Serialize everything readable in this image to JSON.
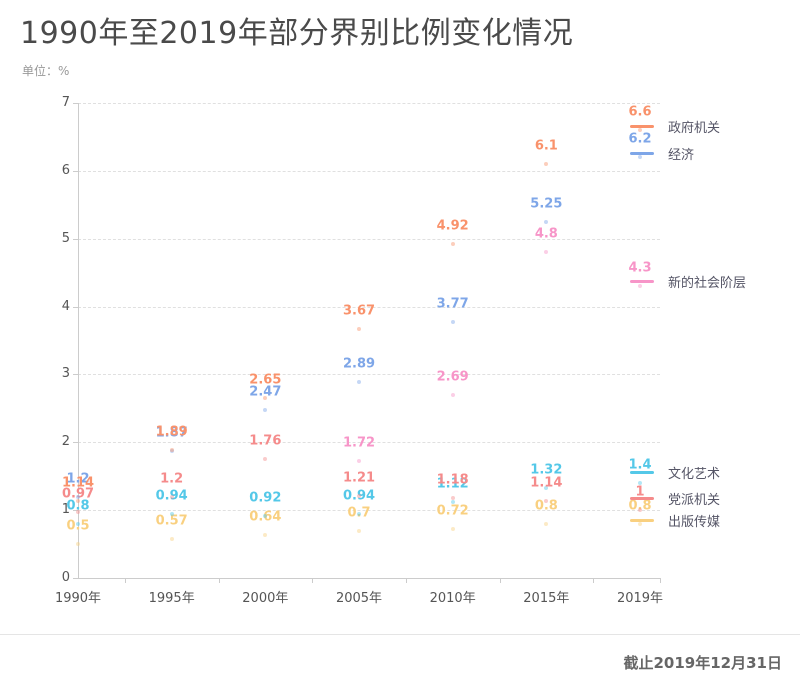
{
  "title": "1990年至2019年部分界别比例变化情况",
  "subtitle": "单位：%",
  "footer_note": "截止2019年12月31日",
  "chart_data": {
    "type": "scatter",
    "title": "1990年至2019年部分界别比例变化情况",
    "unit": "%",
    "categories": [
      "1990年",
      "1995年",
      "2000年",
      "2005年",
      "2010年",
      "2015年",
      "2019年"
    ],
    "ylim": [
      0,
      7
    ],
    "yticks": [
      0,
      1,
      2,
      3,
      4,
      5,
      6,
      7
    ],
    "grid": "horizontal-dashed",
    "legend_position": "right",
    "legend_order": [
      "政府机关",
      "经济",
      "新的社会阶层",
      "文化艺术",
      "党派机关",
      "出版传媒"
    ],
    "series": [
      {
        "name": "出版传媒",
        "color": "#F9D080",
        "values": [
          0.5,
          0.57,
          0.64,
          0.7,
          0.72,
          0.8,
          0.8
        ]
      },
      {
        "name": "文化艺术",
        "color": "#54C8E8",
        "values": [
          0.8,
          0.94,
          0.92,
          0.94,
          1.12,
          1.32,
          1.4
        ]
      },
      {
        "name": "新的社会阶层",
        "color": "#F795C8",
        "values": [
          null,
          null,
          null,
          1.72,
          2.69,
          4.8,
          4.3
        ]
      },
      {
        "name": "党派机关",
        "color": "#F58B8B",
        "values": [
          0.97,
          1.2,
          1.76,
          1.21,
          1.18,
          1.14,
          1
        ]
      },
      {
        "name": "经济",
        "color": "#7EA6E8",
        "values": [
          1.2,
          1.87,
          2.47,
          2.89,
          3.77,
          5.25,
          6.2
        ]
      },
      {
        "name": "政府机关",
        "color": "#F9926B",
        "values": [
          1.14,
          1.89,
          2.65,
          3.67,
          4.92,
          6.1,
          6.6
        ]
      }
    ]
  }
}
